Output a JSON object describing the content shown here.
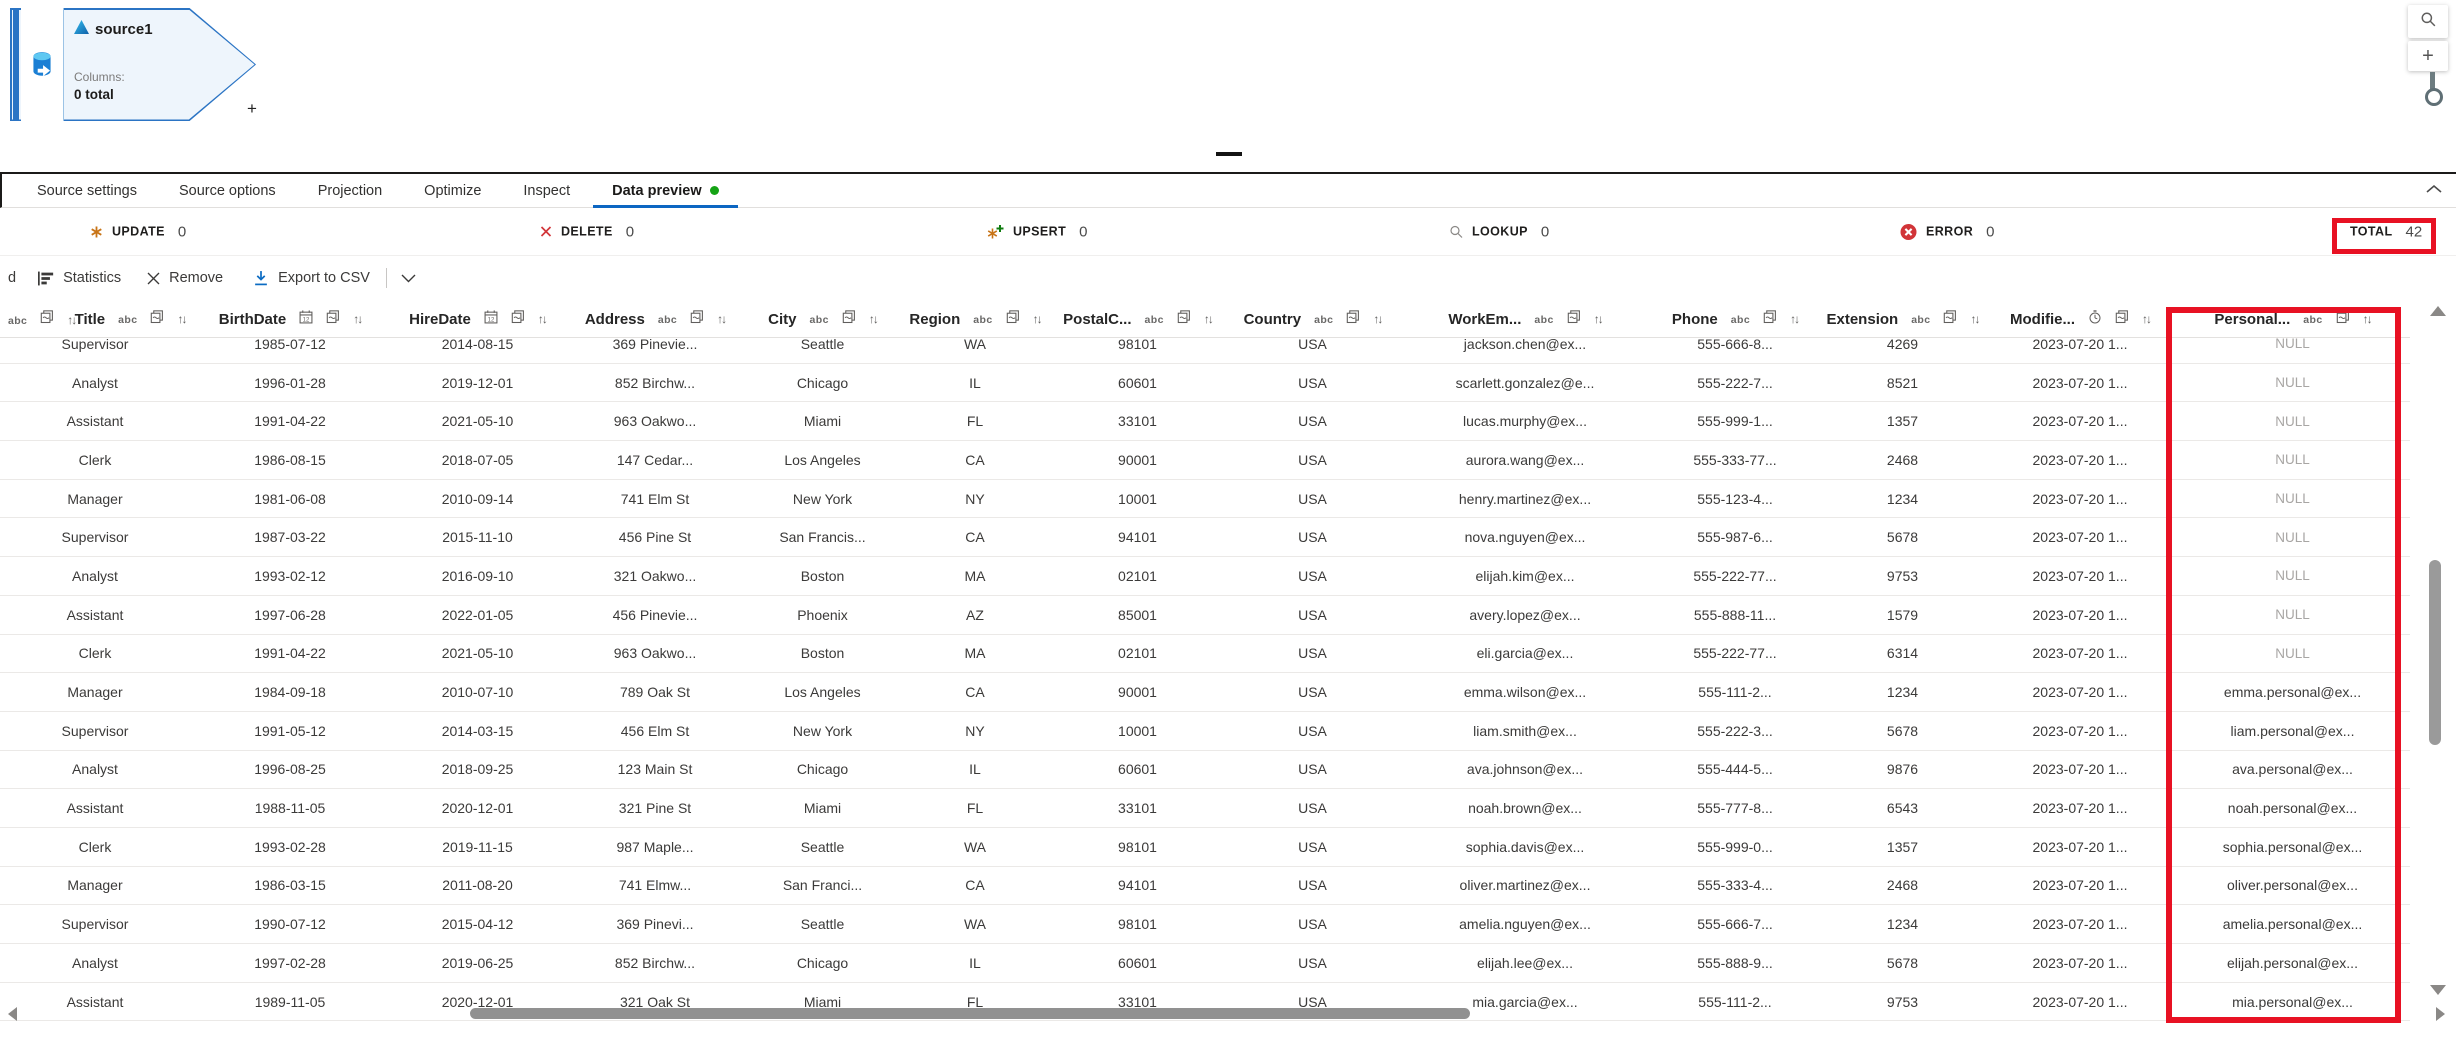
{
  "canvas": {
    "node": {
      "title": "source1",
      "columns_label": "Columns:",
      "columns_value": "0 total",
      "add_label": "+"
    },
    "controls": {
      "search_icon": "magnifier",
      "zoom_in_label": "+"
    }
  },
  "panel": {
    "tabs": [
      {
        "label": "Source settings",
        "active": false
      },
      {
        "label": "Source options",
        "active": false
      },
      {
        "label": "Projection",
        "active": false
      },
      {
        "label": "Optimize",
        "active": false
      },
      {
        "label": "Inspect",
        "active": false
      },
      {
        "label": "Data preview",
        "active": true,
        "has_dot": true
      }
    ],
    "status": [
      {
        "label": "UPDATE",
        "count": "0",
        "icon": "update-icon"
      },
      {
        "label": "DELETE",
        "count": "0",
        "icon": "delete-icon"
      },
      {
        "label": "UPSERT",
        "count": "0",
        "icon": "upsert-icon"
      },
      {
        "label": "LOOKUP",
        "count": "0",
        "icon": "lookup-icon"
      },
      {
        "label": "ERROR",
        "count": "0",
        "icon": "error-icon"
      },
      {
        "label": "TOTAL",
        "count": "42",
        "icon": null,
        "highlighted": true
      }
    ],
    "toolbar": {
      "clipped_text": "d",
      "statistics_label": "Statistics",
      "remove_label": "Remove",
      "export_label": "Export to CSV"
    },
    "grid": {
      "columns": [
        {
          "name": "Title",
          "type": "string"
        },
        {
          "name": "BirthDate",
          "type": "date"
        },
        {
          "name": "HireDate",
          "type": "date"
        },
        {
          "name": "Address",
          "type": "string"
        },
        {
          "name": "City",
          "type": "string"
        },
        {
          "name": "Region",
          "type": "string"
        },
        {
          "name": "PostalC...",
          "type": "string"
        },
        {
          "name": "Country",
          "type": "string"
        },
        {
          "name": "WorkEm...",
          "type": "string"
        },
        {
          "name": "Phone",
          "type": "string"
        },
        {
          "name": "Extension",
          "type": "string"
        },
        {
          "name": "Modifie...",
          "type": "timestamp"
        },
        {
          "name": "Personal...",
          "type": "string"
        }
      ],
      "rows": [
        [
          "Supervisor",
          "1985-07-12",
          "2014-08-15",
          "369 Pinevie...",
          "Seattle",
          "WA",
          "98101",
          "USA",
          "jackson.chen@ex...",
          "555-666-8...",
          "4269",
          "2023-07-20 1...",
          "NULL"
        ],
        [
          "Analyst",
          "1996-01-28",
          "2019-12-01",
          "852 Birchw...",
          "Chicago",
          "IL",
          "60601",
          "USA",
          "scarlett.gonzalez@e...",
          "555-222-7...",
          "8521",
          "2023-07-20 1...",
          "NULL"
        ],
        [
          "Assistant",
          "1991-04-22",
          "2021-05-10",
          "963 Oakwo...",
          "Miami",
          "FL",
          "33101",
          "USA",
          "lucas.murphy@ex...",
          "555-999-1...",
          "1357",
          "2023-07-20 1...",
          "NULL"
        ],
        [
          "Clerk",
          "1986-08-15",
          "2018-07-05",
          "147 Cedar...",
          "Los Angeles",
          "CA",
          "90001",
          "USA",
          "aurora.wang@ex...",
          "555-333-77...",
          "2468",
          "2023-07-20 1...",
          "NULL"
        ],
        [
          "Manager",
          "1981-06-08",
          "2010-09-14",
          "741 Elm St",
          "New York",
          "NY",
          "10001",
          "USA",
          "henry.martinez@ex...",
          "555-123-4...",
          "1234",
          "2023-07-20 1...",
          "NULL"
        ],
        [
          "Supervisor",
          "1987-03-22",
          "2015-11-10",
          "456 Pine St",
          "San Francis...",
          "CA",
          "94101",
          "USA",
          "nova.nguyen@ex...",
          "555-987-6...",
          "5678",
          "2023-07-20 1...",
          "NULL"
        ],
        [
          "Analyst",
          "1993-02-12",
          "2016-09-10",
          "321 Oakwo...",
          "Boston",
          "MA",
          "02101",
          "USA",
          "elijah.kim@ex...",
          "555-222-77...",
          "9753",
          "2023-07-20 1...",
          "NULL"
        ],
        [
          "Assistant",
          "1997-06-28",
          "2022-01-05",
          "456 Pinevie...",
          "Phoenix",
          "AZ",
          "85001",
          "USA",
          "avery.lopez@ex...",
          "555-888-11...",
          "1579",
          "2023-07-20 1...",
          "NULL"
        ],
        [
          "Clerk",
          "1991-04-22",
          "2021-05-10",
          "963 Oakwo...",
          "Boston",
          "MA",
          "02101",
          "USA",
          "eli.garcia@ex...",
          "555-222-77...",
          "6314",
          "2023-07-20 1...",
          "NULL"
        ],
        [
          "Manager",
          "1984-09-18",
          "2010-07-10",
          "789 Oak St",
          "Los Angeles",
          "CA",
          "90001",
          "USA",
          "emma.wilson@ex...",
          "555-111-2...",
          "1234",
          "2023-07-20 1...",
          "emma.personal@ex..."
        ],
        [
          "Supervisor",
          "1991-05-12",
          "2014-03-15",
          "456 Elm St",
          "New York",
          "NY",
          "10001",
          "USA",
          "liam.smith@ex...",
          "555-222-3...",
          "5678",
          "2023-07-20 1...",
          "liam.personal@ex..."
        ],
        [
          "Analyst",
          "1996-08-25",
          "2018-09-25",
          "123 Main St",
          "Chicago",
          "IL",
          "60601",
          "USA",
          "ava.johnson@ex...",
          "555-444-5...",
          "9876",
          "2023-07-20 1...",
          "ava.personal@ex..."
        ],
        [
          "Assistant",
          "1988-11-05",
          "2020-12-01",
          "321 Pine St",
          "Miami",
          "FL",
          "33101",
          "USA",
          "noah.brown@ex...",
          "555-777-8...",
          "6543",
          "2023-07-20 1...",
          "noah.personal@ex..."
        ],
        [
          "Clerk",
          "1993-02-28",
          "2019-11-15",
          "987 Maple...",
          "Seattle",
          "WA",
          "98101",
          "USA",
          "sophia.davis@ex...",
          "555-999-0...",
          "1357",
          "2023-07-20 1...",
          "sophia.personal@ex..."
        ],
        [
          "Manager",
          "1986-03-15",
          "2011-08-20",
          "741 Elmw...",
          "San Franci...",
          "CA",
          "94101",
          "USA",
          "oliver.martinez@ex...",
          "555-333-4...",
          "2468",
          "2023-07-20 1...",
          "oliver.personal@ex..."
        ],
        [
          "Supervisor",
          "1990-07-12",
          "2015-04-12",
          "369 Pinevi...",
          "Seattle",
          "WA",
          "98101",
          "USA",
          "amelia.nguyen@ex...",
          "555-666-7...",
          "1234",
          "2023-07-20 1...",
          "amelia.personal@ex..."
        ],
        [
          "Analyst",
          "1997-02-28",
          "2019-06-25",
          "852 Birchw...",
          "Chicago",
          "IL",
          "60601",
          "USA",
          "elijah.lee@ex...",
          "555-888-9...",
          "5678",
          "2023-07-20 1...",
          "elijah.personal@ex..."
        ],
        [
          "Assistant",
          "1989-11-05",
          "2020-12-01",
          "321 Oak St",
          "Miami",
          "FL",
          "33101",
          "USA",
          "mia.garcia@ex...",
          "555-111-2...",
          "9753",
          "2023-07-20 1...",
          "mia.personal@ex..."
        ]
      ],
      "null_text": "NULL"
    },
    "annotation_color": "#e81123"
  }
}
